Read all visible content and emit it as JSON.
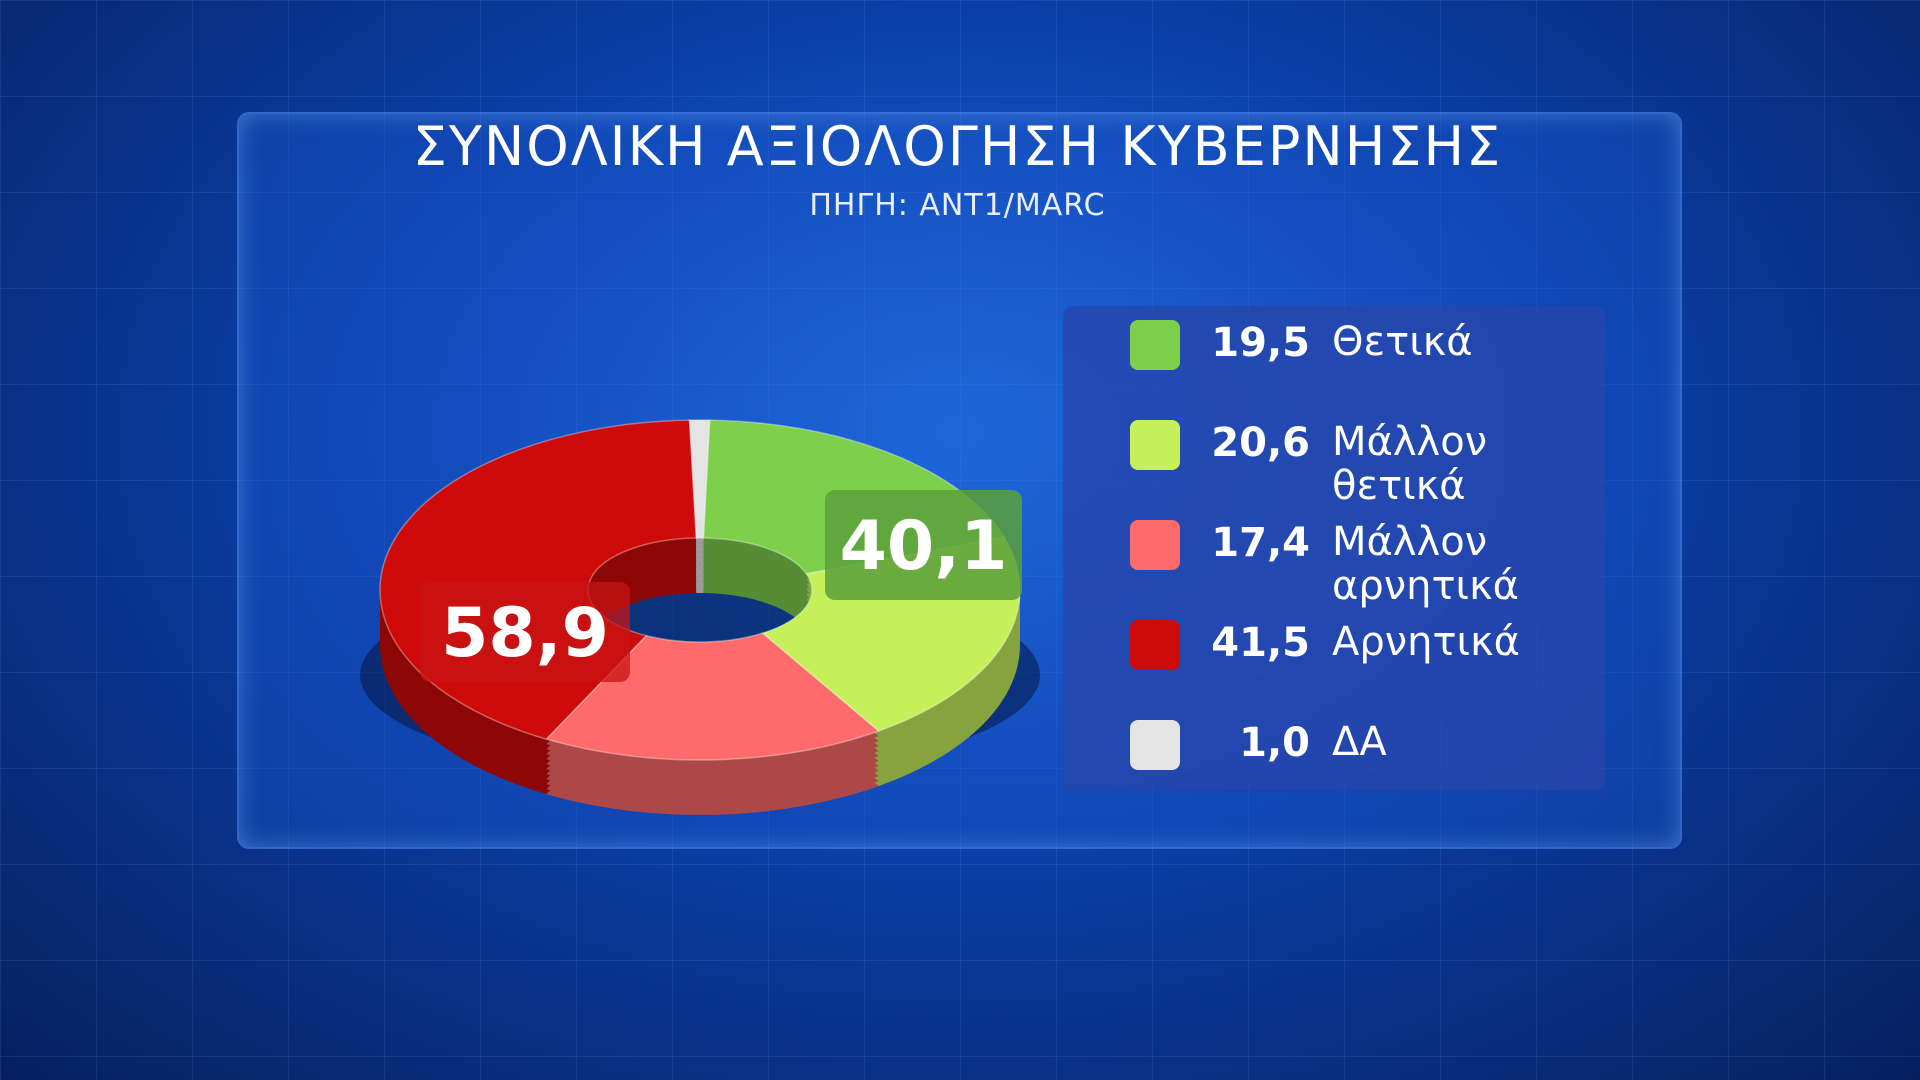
{
  "chart_data": {
    "type": "pie",
    "title": "ΣΥΝΟΛΙΚΗ ΑΞΙΟΛΟΓΗΣΗ ΚΥΒΕΡΝΗΣΗΣ",
    "subtitle": "ΠΗΓΗ: ANT1/MARC",
    "categories": [
      "Θετικά",
      "Μάλλον θετικά",
      "Μάλλον αρνητικά",
      "Αρνητικά",
      "ΔΑ"
    ],
    "values": [
      19.5,
      20.6,
      17.4,
      41.5,
      1.0
    ],
    "value_labels": [
      "19,5",
      "20,6",
      "17,4",
      "41,5",
      "1,0"
    ],
    "colors": [
      "#7ed04c",
      "#c6f05a",
      "#ff6a6a",
      "#cf0a0a",
      "#e4e4e4"
    ],
    "group_labels": [
      {
        "value": 40.1,
        "label": "40,1"
      },
      {
        "value": 58.9,
        "label": "58,9"
      }
    ]
  }
}
